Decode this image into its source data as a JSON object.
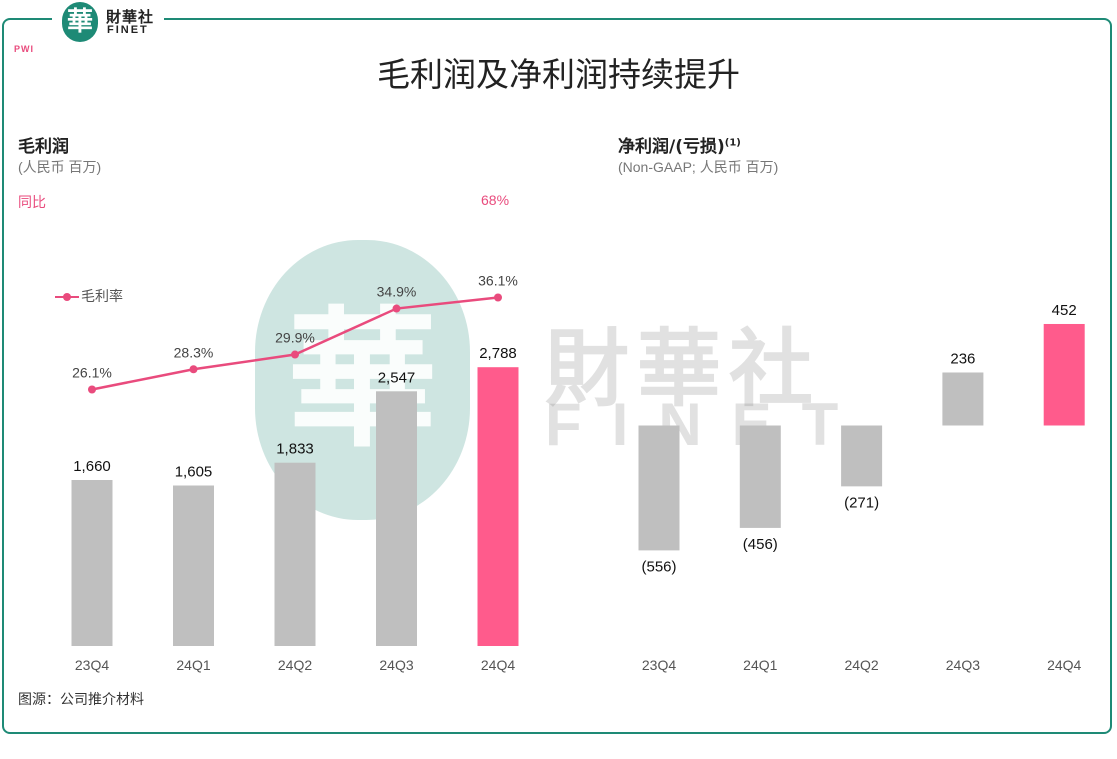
{
  "header": {
    "logo_cn": "財華社",
    "logo_en": "FINET",
    "logo_char": "華",
    "corner_mark": "PWI",
    "title": "毛利润及净利润持续提升"
  },
  "left": {
    "title": "毛利润",
    "unit": "(人民币 百万)",
    "yoy_label": "同比",
    "yoy_value": "68%",
    "legend_label": "毛利率"
  },
  "right": {
    "title": "净利润/(亏损)",
    "title_sup": "(1)",
    "unit": "(Non-GAAP; 人民币 百万)"
  },
  "watermark": {
    "cn": "財華社",
    "en": "FINET",
    "char": "華"
  },
  "source": "图源：公司推介材料",
  "colors": {
    "gray_bar": "#bfbfbf",
    "pink_bar": "#ff5b8c",
    "line": "#e94b7d",
    "frame": "#1e8a76"
  },
  "chart_data": [
    {
      "type": "bar",
      "title": "毛利润",
      "categories": [
        "23Q4",
        "24Q1",
        "24Q2",
        "24Q3",
        "24Q4"
      ],
      "values": [
        1660,
        1605,
        1833,
        2547,
        2788
      ],
      "value_labels": [
        "1,660",
        "1,605",
        "1,833",
        "2,547",
        "2,788"
      ],
      "highlight_index": 4,
      "line_series": {
        "name": "毛利率",
        "values": [
          26.1,
          28.3,
          29.9,
          34.9,
          36.1
        ],
        "labels": [
          "26.1%",
          "28.3%",
          "29.9%",
          "34.9%",
          "36.1%"
        ]
      }
    },
    {
      "type": "bar",
      "title": "净利润/(亏损)",
      "categories": [
        "23Q4",
        "24Q1",
        "24Q2",
        "24Q3",
        "24Q4"
      ],
      "values": [
        -556,
        -456,
        -271,
        236,
        452
      ],
      "value_labels": [
        "(556)",
        "(456)",
        "(271)",
        "236",
        "452"
      ],
      "highlight_index": 4
    }
  ]
}
